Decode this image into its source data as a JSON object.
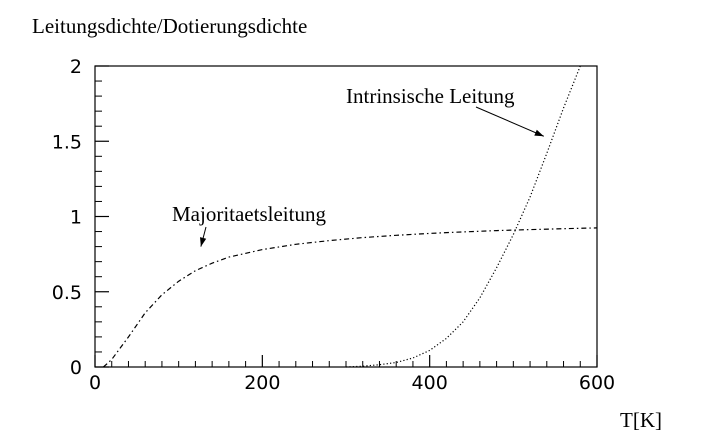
{
  "chart_data": {
    "type": "line",
    "title": "",
    "ylabel": "Leitungsdichte/Dotierungsdichte",
    "xlabel": "T[K]",
    "xlim": [
      0,
      600
    ],
    "ylim": [
      0,
      2
    ],
    "x_ticks": [
      "0",
      "200",
      "400",
      "600"
    ],
    "y_ticks": [
      "0",
      "0.5",
      "1",
      "1.5",
      "2"
    ],
    "x_tick_values": [
      0,
      200,
      400,
      600
    ],
    "y_tick_values": [
      0,
      0.5,
      1,
      1.5,
      2
    ],
    "grid": false,
    "series": [
      {
        "name": "Majoritaetsleitung",
        "style": "dash-dot",
        "x": [
          10,
          20,
          40,
          60,
          80,
          100,
          120,
          140,
          160,
          200,
          240,
          280,
          320,
          360,
          400,
          440,
          480,
          520,
          560,
          600
        ],
        "y": [
          0.0,
          0.05,
          0.2,
          0.36,
          0.48,
          0.57,
          0.64,
          0.69,
          0.73,
          0.78,
          0.815,
          0.84,
          0.86,
          0.875,
          0.888,
          0.898,
          0.906,
          0.913,
          0.919,
          0.924
        ]
      },
      {
        "name": "Intrinsische Leitung",
        "style": "dotted",
        "x": [
          300,
          320,
          340,
          360,
          380,
          400,
          420,
          440,
          460,
          480,
          500,
          520,
          540,
          560,
          580
        ],
        "y": [
          0.0,
          0.005,
          0.015,
          0.03,
          0.06,
          0.11,
          0.19,
          0.3,
          0.46,
          0.66,
          0.88,
          1.13,
          1.42,
          1.72,
          2.0
        ]
      }
    ],
    "annotations": [
      {
        "text": "Majoritaetsleitung",
        "x": 160,
        "y": 0.76
      },
      {
        "text": "Intrinsische Leitung",
        "x": 540,
        "y": 1.52
      }
    ]
  }
}
